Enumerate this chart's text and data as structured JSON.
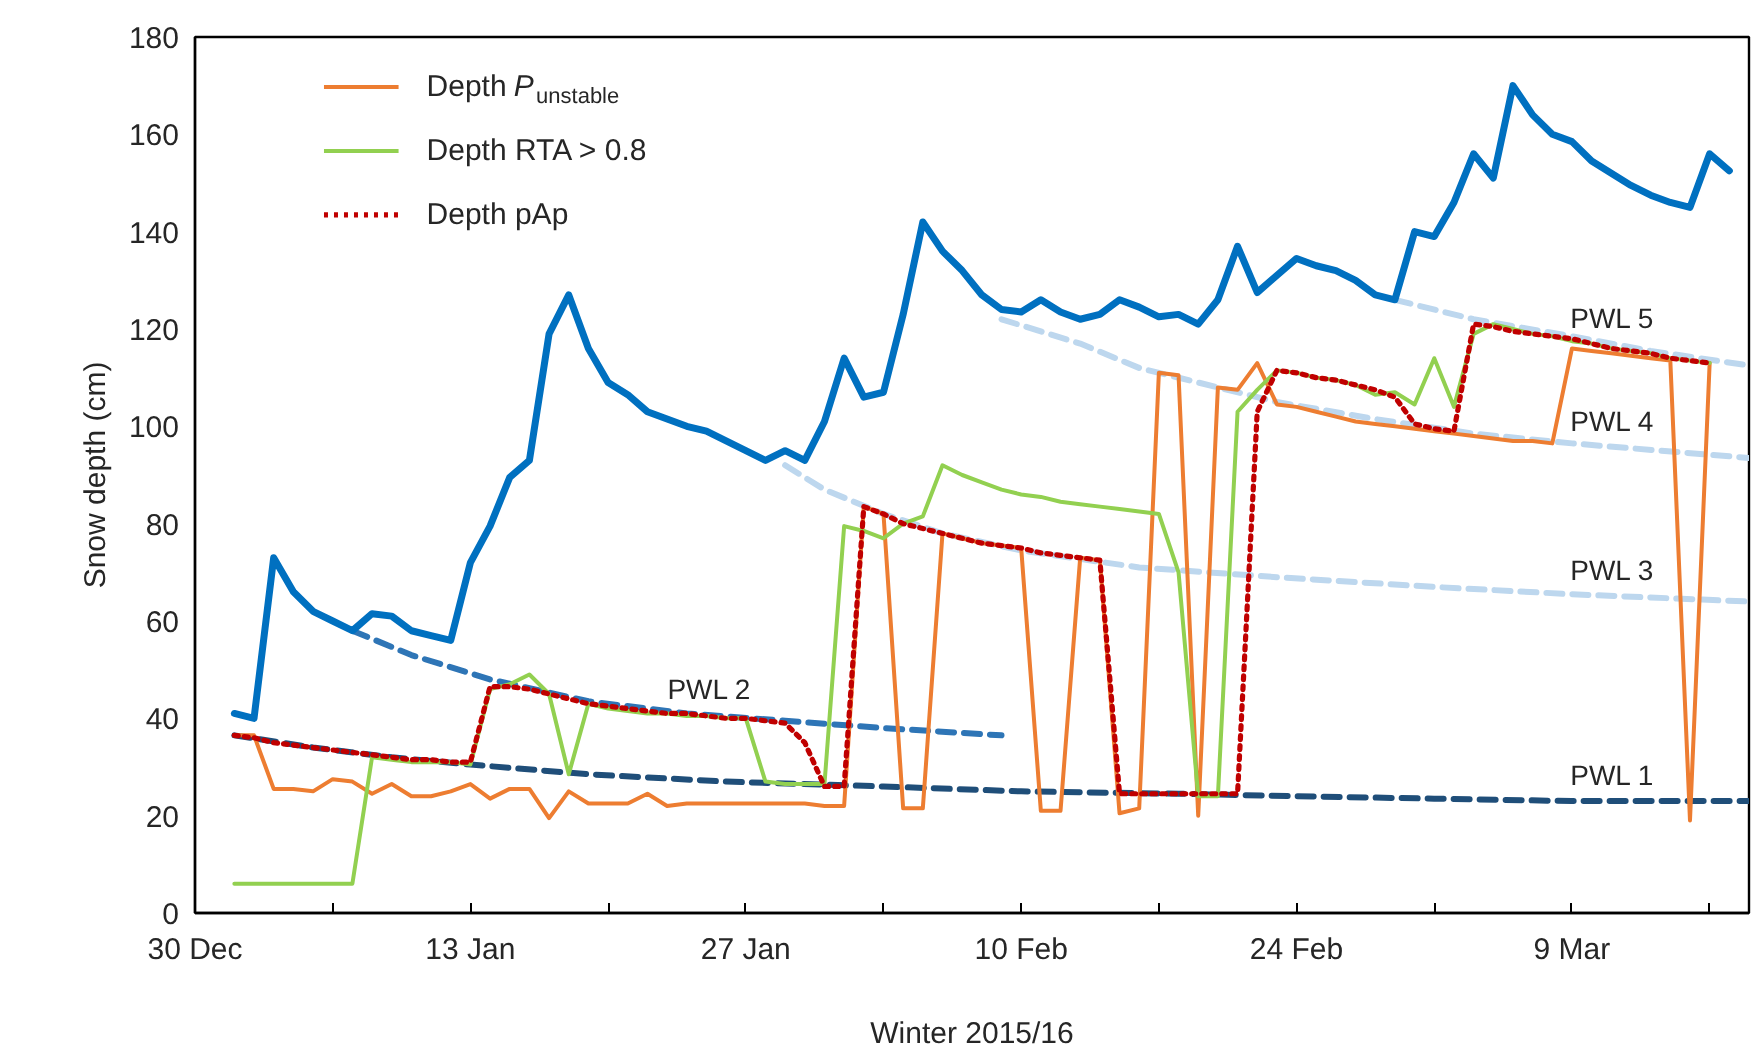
{
  "chart_data": {
    "type": "line",
    "xlabel": "Winter 2015/16",
    "ylabel": "Snow depth (cm)",
    "x": [
      "2016-01-01",
      "2016-01-02",
      "2016-01-03",
      "2016-01-04",
      "2016-01-05",
      "2016-01-06",
      "2016-01-07",
      "2016-01-08",
      "2016-01-09",
      "2016-01-10",
      "2016-01-11",
      "2016-01-12",
      "2016-01-13",
      "2016-01-14",
      "2016-01-15",
      "2016-01-16",
      "2016-01-17",
      "2016-01-18",
      "2016-01-19",
      "2016-01-20",
      "2016-01-21",
      "2016-01-22",
      "2016-01-23",
      "2016-01-24",
      "2016-01-25",
      "2016-01-26",
      "2016-01-27",
      "2016-01-28",
      "2016-01-29",
      "2016-01-30",
      "2016-01-31",
      "2016-02-01",
      "2016-02-02",
      "2016-02-03",
      "2016-02-04",
      "2016-02-05",
      "2016-02-06",
      "2016-02-07",
      "2016-02-08",
      "2016-02-09",
      "2016-02-10",
      "2016-02-11",
      "2016-02-12",
      "2016-02-13",
      "2016-02-14",
      "2016-02-15",
      "2016-02-16",
      "2016-02-17",
      "2016-02-18",
      "2016-02-19",
      "2016-02-20",
      "2016-02-21",
      "2016-02-22",
      "2016-02-23",
      "2016-02-24",
      "2016-02-25",
      "2016-02-26",
      "2016-02-27",
      "2016-02-28",
      "2016-02-29",
      "2016-03-01",
      "2016-03-02",
      "2016-03-03",
      "2016-03-04",
      "2016-03-05",
      "2016-03-06",
      "2016-03-07",
      "2016-03-08",
      "2016-03-09",
      "2016-03-10",
      "2016-03-11",
      "2016-03-12",
      "2016-03-13",
      "2016-03-14",
      "2016-03-15",
      "2016-03-16",
      "2016-03-17"
    ],
    "series": [
      {
        "name": "PWL 1",
        "color": "#1f4e79",
        "line_style": "dashed",
        "x": [
          "2016-01-01",
          "2016-01-05",
          "2016-01-09",
          "2016-01-13",
          "2016-01-19",
          "2016-01-26",
          "2016-02-03",
          "2016-02-10",
          "2016-02-18",
          "2016-02-24",
          "2016-03-02",
          "2016-03-09",
          "2016-03-18"
        ],
        "values": [
          36.5,
          34,
          32,
          30.5,
          28.5,
          27,
          26,
          25,
          24.5,
          24,
          23.5,
          23,
          23
        ]
      },
      {
        "name": "PWL 2",
        "color": "#2e75b6",
        "line_style": "dashed",
        "x": [
          "2016-01-07",
          "2016-01-10",
          "2016-01-14",
          "2016-01-19",
          "2016-01-24",
          "2016-01-29",
          "2016-02-03",
          "2016-02-09"
        ],
        "values": [
          58,
          53,
          48,
          43.5,
          41,
          39.5,
          38,
          36.5
        ]
      },
      {
        "name": "PWL 3",
        "color": "#bdd7ee",
        "line_style": "dashed",
        "x": [
          "2016-01-29",
          "2016-01-31",
          "2016-02-03",
          "2016-02-06",
          "2016-02-10",
          "2016-02-16",
          "2016-02-23",
          "2016-03-02",
          "2016-03-09",
          "2016-03-18"
        ],
        "values": [
          92,
          87,
          82,
          78,
          74.5,
          71,
          69,
          67,
          65.5,
          64
        ]
      },
      {
        "name": "PWL 4",
        "color": "#bdd7ee",
        "line_style": "dashed",
        "x": [
          "2016-02-09",
          "2016-02-13",
          "2016-02-16",
          "2016-02-20",
          "2016-02-23",
          "2016-02-28",
          "2016-03-04",
          "2016-03-09",
          "2016-03-18"
        ],
        "values": [
          122,
          117,
          112,
          108,
          105,
          101.5,
          98.5,
          96.5,
          93.5
        ]
      },
      {
        "name": "PWL 5",
        "color": "#bdd7ee",
        "line_style": "dashed",
        "x": [
          "2016-02-29",
          "2016-03-04",
          "2016-03-09",
          "2016-03-13",
          "2016-03-18"
        ],
        "values": [
          126,
          122,
          118.5,
          115.5,
          112.5
        ]
      },
      {
        "color": "#0070c0",
        "line_style": "solid",
        "values": [
          41,
          40,
          73,
          66,
          62,
          60,
          58,
          61.5,
          61,
          58,
          57,
          56,
          72,
          79.5,
          89.5,
          93,
          119,
          127,
          116,
          109,
          106.5,
          103,
          101.5,
          100,
          99,
          97,
          95,
          93,
          95,
          93,
          101,
          114,
          106,
          107,
          123,
          142,
          136,
          132,
          127,
          124,
          123.5,
          126,
          123.5,
          122,
          123,
          126,
          124.5,
          122.5,
          123,
          121,
          126,
          137,
          127.5,
          131,
          134.5,
          133,
          132,
          130,
          127,
          126,
          140,
          139,
          146,
          156,
          151,
          170,
          164,
          160,
          158.5,
          154.5,
          152,
          149.5,
          147.5,
          146,
          145,
          156,
          152.5
        ]
      },
      {
        "name": "Depth P$_{unstable}$",
        "color": "#ed7d31",
        "line_style": "solid",
        "values": [
          36.5,
          36.5,
          25.5,
          25.5,
          25,
          27.5,
          27,
          24.5,
          26.5,
          24,
          24,
          25,
          26.5,
          23.5,
          25.5,
          25.5,
          19.5,
          25,
          22.5,
          22.5,
          22.5,
          24.5,
          22,
          22.5,
          22.5,
          22.5,
          22.5,
          22.5,
          22.5,
          22.5,
          22,
          22,
          83.5,
          82,
          21.5,
          21.5,
          78,
          77,
          76,
          75.5,
          75,
          21,
          21,
          73,
          72.5,
          20.5,
          21.5,
          111,
          110.5,
          20,
          108,
          107.5,
          113,
          104.5,
          104,
          103,
          102,
          101,
          100.5,
          100,
          99.5,
          99,
          98.5,
          98,
          97.5,
          97,
          97,
          96.5,
          116,
          115.5,
          115,
          114.5,
          114,
          113.5,
          19,
          113,
          null
        ]
      },
      {
        "name": "Depth RTA > 0.8",
        "color": "#92d050",
        "line_style": "solid",
        "values": [
          6,
          6,
          6,
          6,
          6,
          6,
          6,
          32,
          31.5,
          31,
          31,
          31,
          30.5,
          46,
          47,
          49,
          45,
          28.5,
          43,
          42,
          41.5,
          41,
          41,
          40.5,
          40.5,
          40,
          40,
          27,
          26.5,
          26.5,
          26.5,
          79.5,
          78.5,
          77,
          80,
          81.5,
          92,
          90,
          88.5,
          87,
          86,
          85.5,
          84.5,
          84,
          83.5,
          83,
          82.5,
          82,
          70,
          24,
          24,
          103,
          107.5,
          111.5,
          111,
          110,
          109.5,
          108.5,
          106.5,
          107,
          104.5,
          114,
          104,
          119,
          121,
          120,
          119,
          118.5,
          117.5,
          117,
          116,
          115.5,
          115,
          114,
          113.5,
          113,
          null
        ]
      },
      {
        "name": "Depth pAp",
        "color": "#c00000",
        "line_style": "dotted",
        "values": [
          36.5,
          36,
          35,
          34.5,
          34,
          33.5,
          33,
          32.5,
          32,
          31.5,
          31.5,
          31,
          31,
          46.5,
          46.5,
          46,
          45,
          44,
          43,
          42.5,
          42,
          41.5,
          41,
          41,
          40.5,
          40,
          40,
          39.5,
          39,
          35,
          26,
          26,
          83.5,
          82,
          80,
          79,
          78,
          77,
          76,
          75.5,
          75,
          74,
          73.5,
          73,
          72.5,
          24.5,
          24.5,
          24.5,
          24.5,
          24.5,
          24.5,
          24.5,
          103,
          111.5,
          111,
          110,
          109.5,
          108.5,
          107.5,
          106,
          100.5,
          99.5,
          99,
          121,
          120.5,
          119.5,
          119,
          118.5,
          118,
          117,
          116,
          115.5,
          115,
          114,
          113.5,
          113,
          null
        ]
      }
    ],
    "xlim": [
      "2015-12-30",
      "2016-03-18"
    ],
    "xticks": [
      {
        "value": "2015-12-30",
        "label": "30 Dec"
      },
      {
        "value": "2016-01-06",
        "label": null
      },
      {
        "value": "2016-01-13",
        "label": "13 Jan"
      },
      {
        "value": "2016-01-20",
        "label": null
      },
      {
        "value": "2016-01-27",
        "label": "27 Jan"
      },
      {
        "value": "2016-02-03",
        "label": null
      },
      {
        "value": "2016-02-10",
        "label": "10 Feb"
      },
      {
        "value": "2016-02-17",
        "label": null
      },
      {
        "value": "2016-02-24",
        "label": "24 Feb"
      },
      {
        "value": "2016-03-02",
        "label": null
      },
      {
        "value": "2016-03-09",
        "label": "9 Mar"
      },
      {
        "value": "2016-03-16",
        "label": null
      }
    ],
    "ylim": [
      0,
      180
    ],
    "yticks": [
      0,
      20,
      40,
      60,
      80,
      100,
      120,
      140,
      160,
      180
    ],
    "legend": "top left"
  }
}
